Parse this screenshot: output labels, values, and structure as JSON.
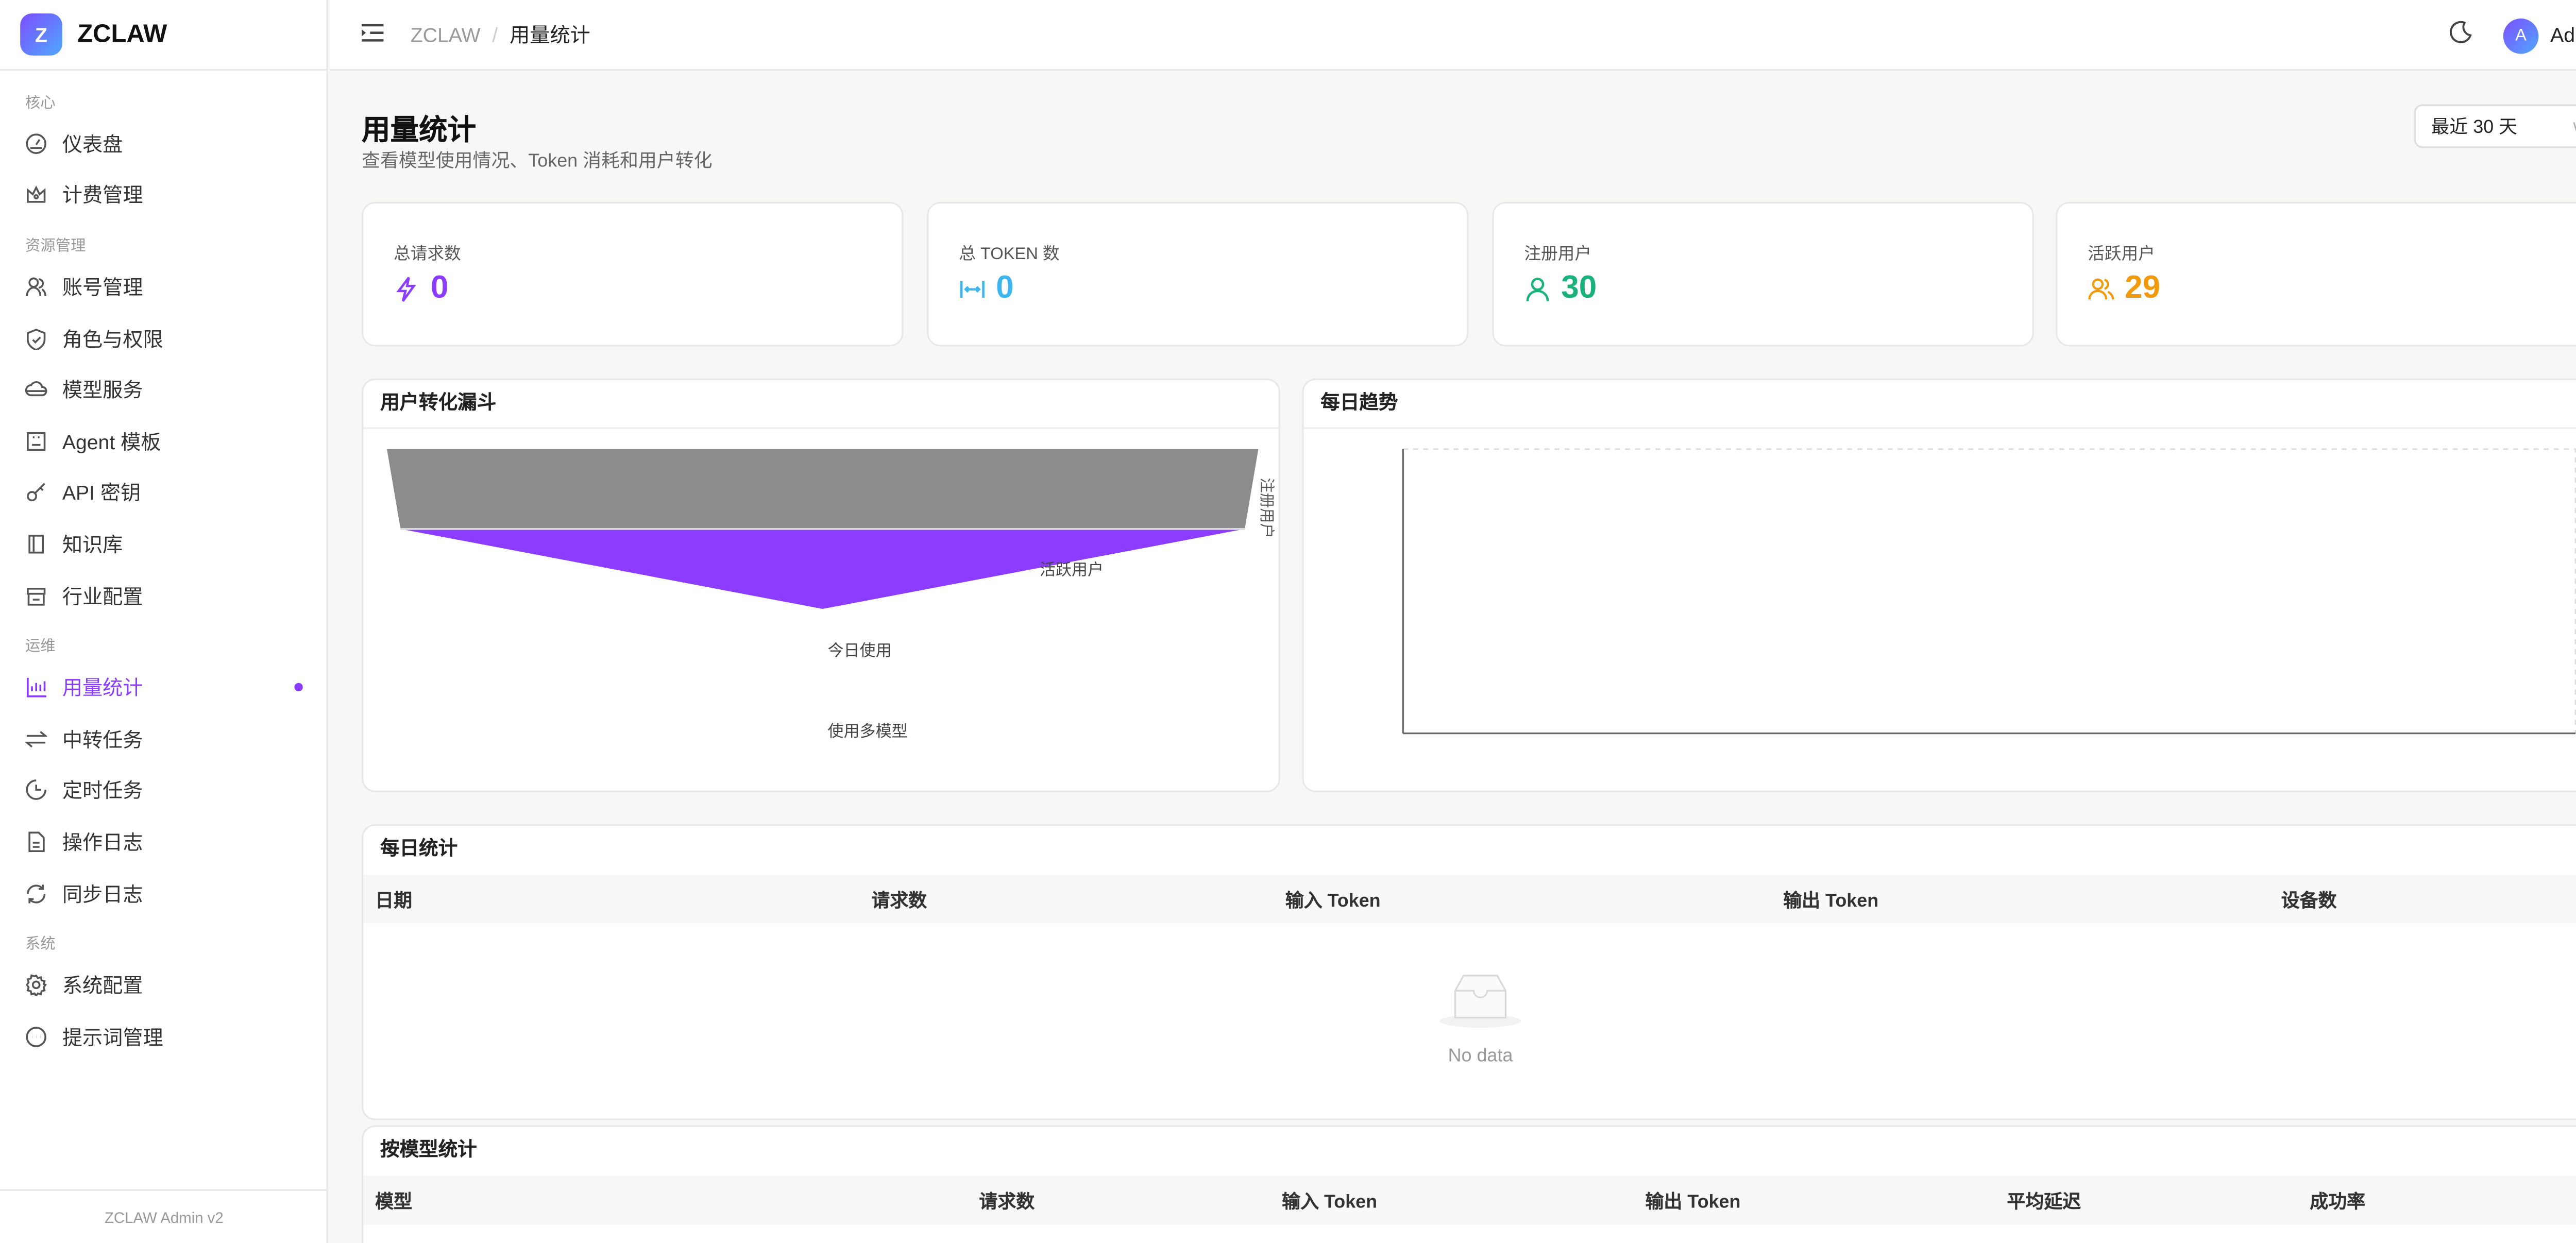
{
  "app": {
    "logo_letter": "Z",
    "name": "ZCLAW",
    "footer": "ZCLAW Admin v2"
  },
  "sidebar": {
    "groups": [
      {
        "label": "核心",
        "items": [
          {
            "label": "仪表盘",
            "icon": "dashboard-icon"
          },
          {
            "label": "计费管理",
            "icon": "crown-icon"
          }
        ]
      },
      {
        "label": "资源管理",
        "items": [
          {
            "label": "账号管理",
            "icon": "users-icon"
          },
          {
            "label": "角色与权限",
            "icon": "shield-icon"
          },
          {
            "label": "模型服务",
            "icon": "cloud-icon"
          },
          {
            "label": "Agent 模板",
            "icon": "template-icon"
          },
          {
            "label": "API 密钥",
            "icon": "key-icon"
          },
          {
            "label": "知识库",
            "icon": "book-icon"
          },
          {
            "label": "行业配置",
            "icon": "store-icon"
          }
        ]
      },
      {
        "label": "运维",
        "items": [
          {
            "label": "用量统计",
            "icon": "bar-chart-icon",
            "active": true
          },
          {
            "label": "中转任务",
            "icon": "swap-icon"
          },
          {
            "label": "定时任务",
            "icon": "clock-icon"
          },
          {
            "label": "操作日志",
            "icon": "file-icon"
          },
          {
            "label": "同步日志",
            "icon": "sync-icon"
          }
        ]
      },
      {
        "label": "系统",
        "items": [
          {
            "label": "系统配置",
            "icon": "gear-icon"
          },
          {
            "label": "提示词管理",
            "icon": "message-icon"
          }
        ]
      }
    ]
  },
  "header": {
    "breadcrumb": [
      "ZCLAW",
      "/",
      "用量统计"
    ],
    "user": {
      "initial": "A",
      "name": "Admin"
    }
  },
  "page": {
    "title": "用量统计",
    "subtitle": "查看模型使用情况、Token 消耗和用户转化",
    "range": "最近 30 天"
  },
  "stats": [
    {
      "label": "总请求数",
      "value": "0",
      "color": "#8b3cff",
      "icon": "lightning-icon"
    },
    {
      "label": "总 TOKEN 数",
      "value": "0",
      "color": "#3fb5f0",
      "icon": "column-width-icon"
    },
    {
      "label": "注册用户",
      "value": "30",
      "color": "#19b27a",
      "icon": "user-icon"
    },
    {
      "label": "活跃用户",
      "value": "29",
      "color": "#f29a0c",
      "icon": "team-icon"
    }
  ],
  "funnel": {
    "title": "用户转化漏斗",
    "stages": [
      {
        "label": "注册用户",
        "value": 30,
        "color": "#8c8c8c"
      },
      {
        "label": "活跃用户",
        "value": 29,
        "color": "#8b3cff"
      },
      {
        "label": "今日使用",
        "value": 0
      },
      {
        "label": "使用多模型",
        "value": 0
      }
    ]
  },
  "trend": {
    "title": "每日趋势"
  },
  "daily": {
    "title": "每日统计",
    "columns": [
      "日期",
      "请求数",
      "输入 Token",
      "输出 Token",
      "设备数"
    ],
    "empty": "No data"
  },
  "models": {
    "title": "按模型统计",
    "columns": [
      "模型",
      "请求数",
      "输入 Token",
      "输出 Token",
      "平均延迟",
      "成功率"
    ]
  }
}
